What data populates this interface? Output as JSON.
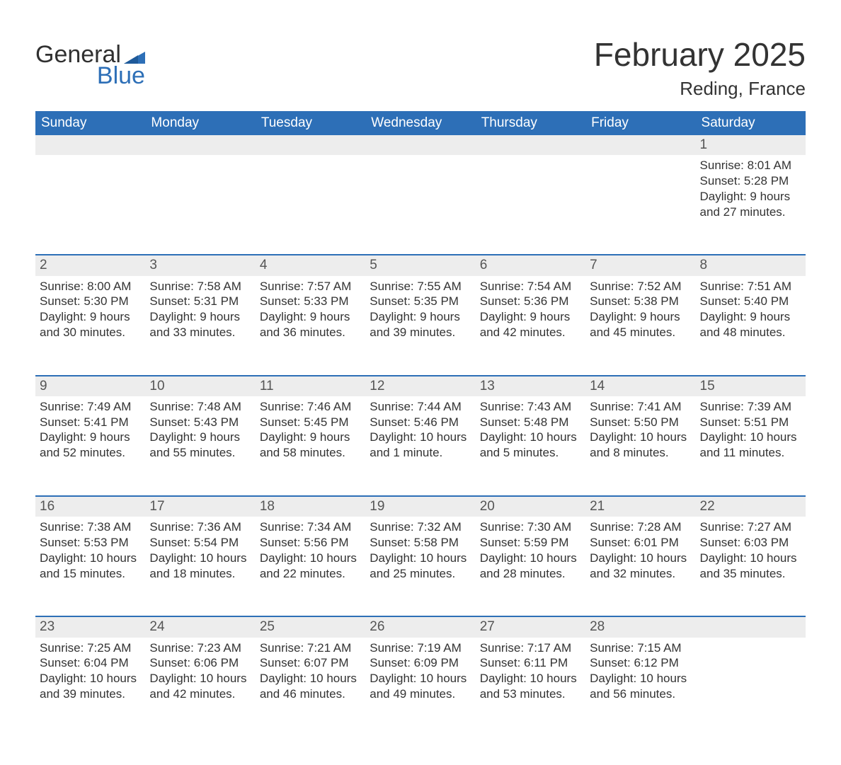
{
  "logo": {
    "word1": "General",
    "word2": "Blue"
  },
  "title": "February 2025",
  "location": "Reding, France",
  "colors": {
    "header_bg": "#2d6fb7",
    "header_text": "#ffffff",
    "daynum_bg": "#ededed",
    "daynum_border": "#2d6fb7",
    "body_text": "#333333",
    "logo_blue": "#2d6fb7",
    "logo_dark": "#303030",
    "page_bg": "#ffffff"
  },
  "weekdays": [
    "Sunday",
    "Monday",
    "Tuesday",
    "Wednesday",
    "Thursday",
    "Friday",
    "Saturday"
  ],
  "weeks": [
    [
      null,
      null,
      null,
      null,
      null,
      null,
      {
        "day": "1",
        "sunrise": "Sunrise: 8:01 AM",
        "sunset": "Sunset: 5:28 PM",
        "daylight": "Daylight: 9 hours and 27 minutes."
      }
    ],
    [
      {
        "day": "2",
        "sunrise": "Sunrise: 8:00 AM",
        "sunset": "Sunset: 5:30 PM",
        "daylight": "Daylight: 9 hours and 30 minutes."
      },
      {
        "day": "3",
        "sunrise": "Sunrise: 7:58 AM",
        "sunset": "Sunset: 5:31 PM",
        "daylight": "Daylight: 9 hours and 33 minutes."
      },
      {
        "day": "4",
        "sunrise": "Sunrise: 7:57 AM",
        "sunset": "Sunset: 5:33 PM",
        "daylight": "Daylight: 9 hours and 36 minutes."
      },
      {
        "day": "5",
        "sunrise": "Sunrise: 7:55 AM",
        "sunset": "Sunset: 5:35 PM",
        "daylight": "Daylight: 9 hours and 39 minutes."
      },
      {
        "day": "6",
        "sunrise": "Sunrise: 7:54 AM",
        "sunset": "Sunset: 5:36 PM",
        "daylight": "Daylight: 9 hours and 42 minutes."
      },
      {
        "day": "7",
        "sunrise": "Sunrise: 7:52 AM",
        "sunset": "Sunset: 5:38 PM",
        "daylight": "Daylight: 9 hours and 45 minutes."
      },
      {
        "day": "8",
        "sunrise": "Sunrise: 7:51 AM",
        "sunset": "Sunset: 5:40 PM",
        "daylight": "Daylight: 9 hours and 48 minutes."
      }
    ],
    [
      {
        "day": "9",
        "sunrise": "Sunrise: 7:49 AM",
        "sunset": "Sunset: 5:41 PM",
        "daylight": "Daylight: 9 hours and 52 minutes."
      },
      {
        "day": "10",
        "sunrise": "Sunrise: 7:48 AM",
        "sunset": "Sunset: 5:43 PM",
        "daylight": "Daylight: 9 hours and 55 minutes."
      },
      {
        "day": "11",
        "sunrise": "Sunrise: 7:46 AM",
        "sunset": "Sunset: 5:45 PM",
        "daylight": "Daylight: 9 hours and 58 minutes."
      },
      {
        "day": "12",
        "sunrise": "Sunrise: 7:44 AM",
        "sunset": "Sunset: 5:46 PM",
        "daylight": "Daylight: 10 hours and 1 minute."
      },
      {
        "day": "13",
        "sunrise": "Sunrise: 7:43 AM",
        "sunset": "Sunset: 5:48 PM",
        "daylight": "Daylight: 10 hours and 5 minutes."
      },
      {
        "day": "14",
        "sunrise": "Sunrise: 7:41 AM",
        "sunset": "Sunset: 5:50 PM",
        "daylight": "Daylight: 10 hours and 8 minutes."
      },
      {
        "day": "15",
        "sunrise": "Sunrise: 7:39 AM",
        "sunset": "Sunset: 5:51 PM",
        "daylight": "Daylight: 10 hours and 11 minutes."
      }
    ],
    [
      {
        "day": "16",
        "sunrise": "Sunrise: 7:38 AM",
        "sunset": "Sunset: 5:53 PM",
        "daylight": "Daylight: 10 hours and 15 minutes."
      },
      {
        "day": "17",
        "sunrise": "Sunrise: 7:36 AM",
        "sunset": "Sunset: 5:54 PM",
        "daylight": "Daylight: 10 hours and 18 minutes."
      },
      {
        "day": "18",
        "sunrise": "Sunrise: 7:34 AM",
        "sunset": "Sunset: 5:56 PM",
        "daylight": "Daylight: 10 hours and 22 minutes."
      },
      {
        "day": "19",
        "sunrise": "Sunrise: 7:32 AM",
        "sunset": "Sunset: 5:58 PM",
        "daylight": "Daylight: 10 hours and 25 minutes."
      },
      {
        "day": "20",
        "sunrise": "Sunrise: 7:30 AM",
        "sunset": "Sunset: 5:59 PM",
        "daylight": "Daylight: 10 hours and 28 minutes."
      },
      {
        "day": "21",
        "sunrise": "Sunrise: 7:28 AM",
        "sunset": "Sunset: 6:01 PM",
        "daylight": "Daylight: 10 hours and 32 minutes."
      },
      {
        "day": "22",
        "sunrise": "Sunrise: 7:27 AM",
        "sunset": "Sunset: 6:03 PM",
        "daylight": "Daylight: 10 hours and 35 minutes."
      }
    ],
    [
      {
        "day": "23",
        "sunrise": "Sunrise: 7:25 AM",
        "sunset": "Sunset: 6:04 PM",
        "daylight": "Daylight: 10 hours and 39 minutes."
      },
      {
        "day": "24",
        "sunrise": "Sunrise: 7:23 AM",
        "sunset": "Sunset: 6:06 PM",
        "daylight": "Daylight: 10 hours and 42 minutes."
      },
      {
        "day": "25",
        "sunrise": "Sunrise: 7:21 AM",
        "sunset": "Sunset: 6:07 PM",
        "daylight": "Daylight: 10 hours and 46 minutes."
      },
      {
        "day": "26",
        "sunrise": "Sunrise: 7:19 AM",
        "sunset": "Sunset: 6:09 PM",
        "daylight": "Daylight: 10 hours and 49 minutes."
      },
      {
        "day": "27",
        "sunrise": "Sunrise: 7:17 AM",
        "sunset": "Sunset: 6:11 PM",
        "daylight": "Daylight: 10 hours and 53 minutes."
      },
      {
        "day": "28",
        "sunrise": "Sunrise: 7:15 AM",
        "sunset": "Sunset: 6:12 PM",
        "daylight": "Daylight: 10 hours and 56 minutes."
      },
      null
    ]
  ]
}
